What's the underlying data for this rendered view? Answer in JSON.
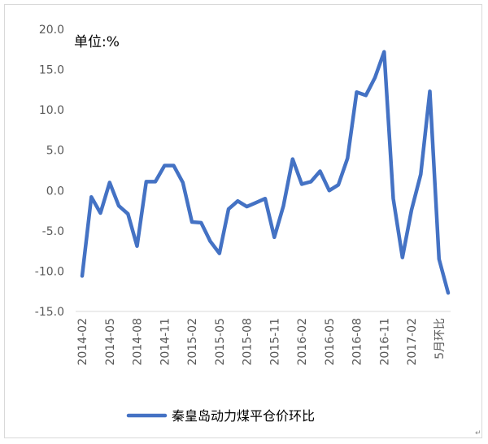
{
  "chart_data": {
    "type": "line",
    "unit_label": "单位:%",
    "ylim": [
      -15,
      20
    ],
    "y_ticks": [
      {
        "value": 20,
        "label": "20.0"
      },
      {
        "value": 15,
        "label": "15.0"
      },
      {
        "value": 10,
        "label": "10.0"
      },
      {
        "value": 5,
        "label": "5.0"
      },
      {
        "value": 0,
        "label": "0.0"
      },
      {
        "value": -5,
        "label": "-5.0"
      },
      {
        "value": -10,
        "label": "-10.0"
      },
      {
        "value": -15,
        "label": "-15.0"
      }
    ],
    "x_tick_labels": [
      {
        "index": 0,
        "label": "2014-02"
      },
      {
        "index": 3,
        "label": "2014-05"
      },
      {
        "index": 6,
        "label": "2014-08"
      },
      {
        "index": 9,
        "label": "2014-11"
      },
      {
        "index": 12,
        "label": "2015-02"
      },
      {
        "index": 15,
        "label": "2015-05"
      },
      {
        "index": 18,
        "label": "2015-08"
      },
      {
        "index": 21,
        "label": "2015-11"
      },
      {
        "index": 24,
        "label": "2016-02"
      },
      {
        "index": 27,
        "label": "2016-05"
      },
      {
        "index": 30,
        "label": "2016-08"
      },
      {
        "index": 33,
        "label": "2016-11"
      },
      {
        "index": 36,
        "label": "2017-02"
      },
      {
        "index": 39,
        "label": "5月环比"
      }
    ],
    "grid": false,
    "legend_position": "bottom",
    "series": [
      {
        "name": "秦皇岛动力煤平仓价环比",
        "color": "#4472c4",
        "values": [
          -10.6,
          -0.8,
          -2.8,
          1.0,
          -1.9,
          -2.9,
          -6.9,
          1.1,
          1.1,
          3.1,
          3.1,
          1.0,
          -3.9,
          -4.0,
          -6.3,
          -7.8,
          -2.3,
          -1.3,
          -2.0,
          -1.5,
          -1.0,
          -5.8,
          -1.9,
          3.9,
          0.8,
          1.1,
          2.4,
          0.0,
          0.7,
          4.0,
          12.2,
          11.8,
          14.0,
          17.2,
          -1.0,
          -8.3,
          -2.4,
          2.0,
          12.3,
          -8.5,
          -12.7
        ]
      }
    ]
  }
}
